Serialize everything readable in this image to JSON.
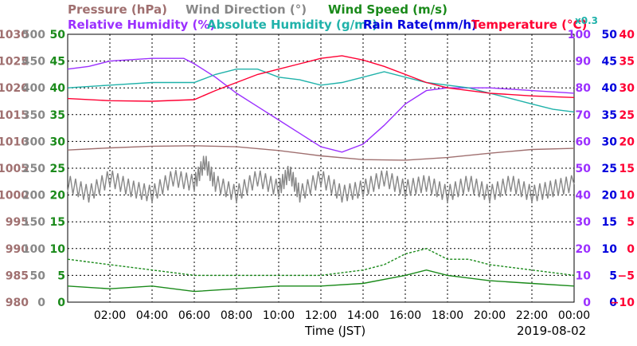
{
  "chart_data": {
    "type": "line",
    "header": {
      "line1": [
        {
          "text": "Pressure (hPa)",
          "color": "#a07070"
        },
        {
          "text": "Wind Direction (°)",
          "color": "#888888"
        },
        {
          "text": "Wind Speed (m/s)",
          "color": "#1a8a1a"
        }
      ],
      "line2": [
        {
          "text": "Relative Humidity (%)",
          "color": "#9b30ff"
        },
        {
          "text": "Absolute Humidity (g/m³)",
          "color": "#20b2aa"
        },
        {
          "text": "Rain Rate(mm/h)",
          "color": "#0000dd"
        },
        {
          "text": "Temperature (°C)",
          "color": "#ff0033"
        }
      ],
      "abs_humidity_scale": "x0.3"
    },
    "xlabel": "Time (JST)",
    "date": "2019-08-02",
    "x_ticks": [
      "02:00",
      "04:00",
      "06:00",
      "08:00",
      "10:00",
      "12:00",
      "14:00",
      "16:00",
      "18:00",
      "20:00",
      "22:00",
      "00:00"
    ],
    "xlim_hours": [
      0,
      24
    ],
    "left_axes": [
      {
        "name": "pressure",
        "color": "#a07070",
        "ticks": [
          "1030",
          "1025",
          "1020",
          "1015",
          "1010",
          "1005",
          "1000",
          "995",
          "990",
          "985",
          "980"
        ]
      },
      {
        "name": "wind_direction",
        "color": "#888888",
        "ticks": [
          "500",
          "450",
          "400",
          "350",
          "300",
          "250",
          "200",
          "150",
          "100",
          "50",
          "0"
        ]
      },
      {
        "name": "wind_speed",
        "color": "#1a8a1a",
        "ticks": [
          "50",
          "45",
          "40",
          "35",
          "30",
          "25",
          "20",
          "15",
          "10",
          "5",
          "0"
        ]
      }
    ],
    "right_axes": [
      {
        "name": "relative_humidity",
        "color": "#9b30ff",
        "ticks": [
          "100",
          "90",
          "80",
          "70",
          "60",
          "50",
          "40",
          "30",
          "20",
          "10",
          "0"
        ]
      },
      {
        "name": "rain_rate",
        "color": "#0000dd",
        "ticks": [
          "50",
          "45",
          "40",
          "35",
          "30",
          "25",
          "20",
          "15",
          "10",
          "5",
          "0"
        ]
      },
      {
        "name": "temperature",
        "color": "#ff0033",
        "ticks": [
          "40",
          "35",
          "30",
          "25",
          "20",
          "15",
          "10",
          "5",
          "0",
          "−5",
          "−10"
        ]
      }
    ],
    "grid": true,
    "series": [
      {
        "name": "Pressure (hPa)",
        "color": "#a07070",
        "ylim": [
          980,
          1030
        ],
        "points": [
          [
            0,
            1008.4
          ],
          [
            2,
            1008.8
          ],
          [
            4,
            1009.1
          ],
          [
            6,
            1009.2
          ],
          [
            8,
            1009.0
          ],
          [
            10,
            1008.3
          ],
          [
            12,
            1007.3
          ],
          [
            14,
            1006.6
          ],
          [
            16,
            1006.5
          ],
          [
            18,
            1007.0
          ],
          [
            20,
            1007.8
          ],
          [
            22,
            1008.5
          ],
          [
            24,
            1008.7
          ]
        ]
      },
      {
        "name": "Wind Direction (°)",
        "color": "#888888",
        "ylim": [
          0,
          500
        ],
        "style": "jagged",
        "points": [
          [
            0,
            220
          ],
          [
            1,
            200
          ],
          [
            2,
            230
          ],
          [
            3,
            210
          ],
          [
            4,
            200
          ],
          [
            5,
            230
          ],
          [
            6,
            220
          ],
          [
            6.5,
            260
          ],
          [
            7,
            220
          ],
          [
            8,
            200
          ],
          [
            9,
            230
          ],
          [
            10,
            210
          ],
          [
            10.5,
            240
          ],
          [
            11,
            200
          ],
          [
            12,
            230
          ],
          [
            13,
            200
          ],
          [
            14,
            210
          ],
          [
            15,
            230
          ],
          [
            16,
            210
          ],
          [
            17,
            220
          ],
          [
            18,
            200
          ],
          [
            19,
            220
          ],
          [
            20,
            200
          ],
          [
            21,
            220
          ],
          [
            22,
            200
          ],
          [
            23,
            210
          ],
          [
            24,
            220
          ]
        ]
      },
      {
        "name": "Wind Speed (m/s)",
        "color": "#1a8a1a",
        "ylim": [
          0,
          50
        ],
        "points": [
          [
            0,
            3
          ],
          [
            2,
            2.5
          ],
          [
            4,
            3
          ],
          [
            6,
            2
          ],
          [
            8,
            2.5
          ],
          [
            10,
            3
          ],
          [
            12,
            3
          ],
          [
            14,
            3.5
          ],
          [
            16,
            5
          ],
          [
            17,
            6
          ],
          [
            18,
            5
          ],
          [
            20,
            4
          ],
          [
            22,
            3.5
          ],
          [
            24,
            3
          ]
        ]
      },
      {
        "name": "Wind Speed gust (m/s)",
        "color": "#1a8a1a",
        "ylim": [
          0,
          50
        ],
        "dashed": true,
        "points": [
          [
            0,
            8
          ],
          [
            2,
            7
          ],
          [
            4,
            6
          ],
          [
            6,
            5
          ],
          [
            8,
            5
          ],
          [
            10,
            5
          ],
          [
            12,
            5
          ],
          [
            14,
            6
          ],
          [
            15,
            7
          ],
          [
            16,
            9
          ],
          [
            17,
            10
          ],
          [
            18,
            8
          ],
          [
            19,
            8
          ],
          [
            20,
            7
          ],
          [
            22,
            6
          ],
          [
            24,
            5
          ]
        ]
      },
      {
        "name": "Relative Humidity (%)",
        "color": "#9b30ff",
        "ylim": [
          0,
          100
        ],
        "points": [
          [
            0,
            87
          ],
          [
            1,
            88
          ],
          [
            2,
            90
          ],
          [
            4,
            91
          ],
          [
            5.5,
            91
          ],
          [
            6,
            89
          ],
          [
            7,
            84
          ],
          [
            8,
            78
          ],
          [
            9,
            73
          ],
          [
            10,
            68
          ],
          [
            11,
            63
          ],
          [
            12,
            58
          ],
          [
            13,
            56
          ],
          [
            14,
            59
          ],
          [
            15,
            66
          ],
          [
            16,
            74
          ],
          [
            17,
            79
          ],
          [
            18,
            80
          ],
          [
            20,
            80
          ],
          [
            22,
            79
          ],
          [
            24,
            78
          ]
        ]
      },
      {
        "name": "Absolute Humidity (g/m³)",
        "color": "#20b2aa",
        "ylim": [
          0,
          100
        ],
        "points": [
          [
            0,
            80
          ],
          [
            2,
            81
          ],
          [
            4,
            82
          ],
          [
            6,
            82
          ],
          [
            7,
            85
          ],
          [
            8,
            87
          ],
          [
            9,
            87
          ],
          [
            10,
            84
          ],
          [
            11,
            83
          ],
          [
            12,
            81
          ],
          [
            13,
            82
          ],
          [
            14,
            84
          ],
          [
            15,
            86
          ],
          [
            16,
            84
          ],
          [
            17,
            82
          ],
          [
            18,
            81
          ],
          [
            19,
            80
          ],
          [
            20,
            78
          ],
          [
            21,
            76
          ],
          [
            22,
            74
          ],
          [
            23,
            72
          ],
          [
            24,
            71
          ]
        ]
      },
      {
        "name": "Temperature (°C)",
        "color": "#ff0033",
        "ylim": [
          -10,
          40
        ],
        "points": [
          [
            0,
            28.0
          ],
          [
            2,
            27.6
          ],
          [
            4,
            27.5
          ],
          [
            6,
            27.8
          ],
          [
            7,
            29.5
          ],
          [
            8,
            31.0
          ],
          [
            9,
            32.5
          ],
          [
            10,
            33.5
          ],
          [
            11,
            34.5
          ],
          [
            12,
            35.5
          ],
          [
            13,
            36.0
          ],
          [
            14,
            35.2
          ],
          [
            15,
            34.0
          ],
          [
            16,
            32.5
          ],
          [
            17,
            31.0
          ],
          [
            18,
            30.0
          ],
          [
            20,
            29.0
          ],
          [
            22,
            28.5
          ],
          [
            24,
            28.2
          ]
        ]
      }
    ]
  }
}
